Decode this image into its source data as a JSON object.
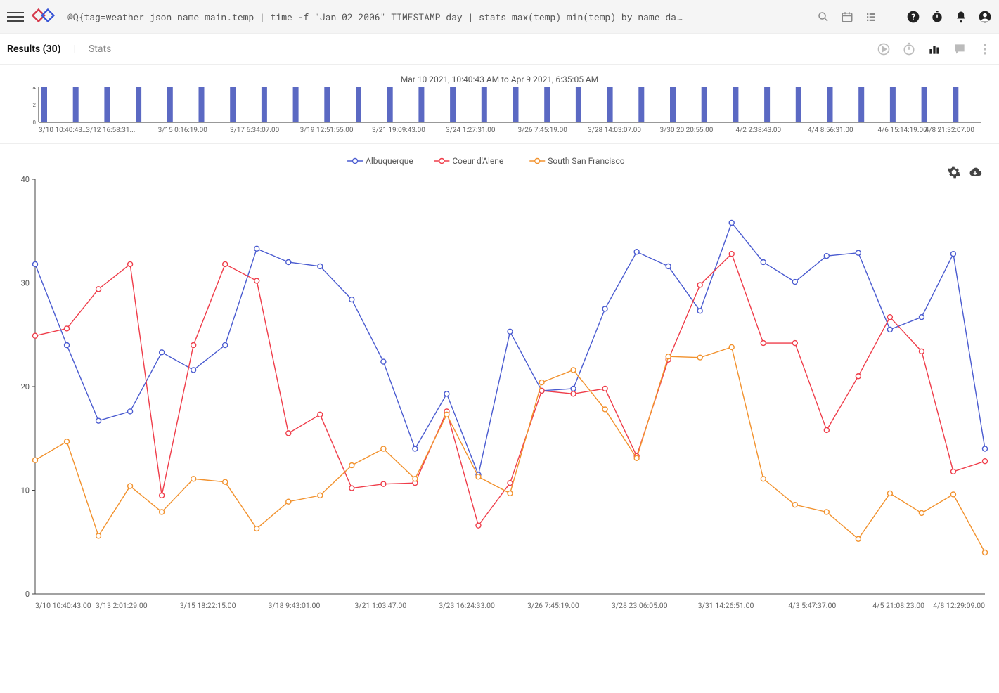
{
  "app": {
    "query": "@Q{tag=weather json name main.temp | time -f \"Jan 02 2006\" TIMESTAMP day | stats max(temp) min(temp) by name da…"
  },
  "results": {
    "active_tab": "Results (30)",
    "inactive_tab": "Stats"
  },
  "timeline": {
    "title": "Mar 10 2021, 10:40:43 AM to Apr 9 2021, 6:35:05 AM",
    "y_ticks": [
      0,
      2,
      4
    ],
    "bar_color": "#5b69c3",
    "bar_value": 4,
    "bar_count": 30,
    "x_labels": [
      "3/10 10:40:43...",
      "3/12 16:58:31...",
      "3/15 0:16:19.00",
      "3/17 6:34:07.00",
      "3/19 12:51:55.00",
      "3/21 19:09:43.00",
      "3/24 1:27:31.00",
      "3/26 7:45:19.00",
      "3/28 14:03:07.00",
      "3/30 20:20:55.00",
      "4/2 2:38:43.00",
      "4/4 8:56:31.00",
      "4/6 15:14:19.00",
      "4/8 21:32:07.00"
    ],
    "axis_color": "#333333",
    "label_color": "#666666",
    "label_fontsize": 10
  },
  "chart": {
    "type": "line",
    "ylim": [
      0,
      40
    ],
    "y_ticks": [
      0,
      10,
      20,
      30,
      40
    ],
    "axis_color": "#444444",
    "tick_fontsize": 11,
    "label_fontsize": 10.5,
    "label_color": "#666666",
    "legend_fontsize": 12,
    "marker_radius": 3.5,
    "line_width": 1.4,
    "background": "#ffffff",
    "x_labels": [
      "3/10 10:40:43.00",
      "3/13 2:01:29.00",
      "3/15 18:22:15.00",
      "3/18 9:43:01.00",
      "3/21 1:03:47.00",
      "3/23 16:24:33.00",
      "3/26 7:45:19.00",
      "3/28 23:06:05.00",
      "3/31 14:26:51.00",
      "4/3 5:47:37.00",
      "4/5 21:08:23.00",
      "4/8 12:29:09.00"
    ],
    "series": [
      {
        "name": "Albuquerque",
        "color": "#4a5bd0",
        "values": [
          31.8,
          24.0,
          16.7,
          17.6,
          23.3,
          21.6,
          24.0,
          33.3,
          32.0,
          31.6,
          28.4,
          22.4,
          14.0,
          19.3,
          11.5,
          25.3,
          19.6,
          19.8,
          27.5,
          33.0,
          31.6,
          27.3,
          35.8,
          32.0,
          30.1,
          32.6,
          32.9,
          25.5,
          26.7,
          32.8,
          14.0
        ]
      },
      {
        "name": "Coeur d'Alene",
        "color": "#ef3d4a",
        "values": [
          24.9,
          25.6,
          29.4,
          31.8,
          9.5,
          24.0,
          31.8,
          30.2,
          15.5,
          17.3,
          10.2,
          10.6,
          10.7,
          17.6,
          6.6,
          10.7,
          19.6,
          19.3,
          19.8,
          13.3,
          22.6,
          29.8,
          32.8,
          24.2,
          24.2,
          15.8,
          21.0,
          26.7,
          23.4,
          11.8,
          12.8
        ]
      },
      {
        "name": "South San Francisco",
        "color": "#f2922e",
        "values": [
          12.9,
          14.7,
          5.6,
          10.4,
          7.9,
          11.1,
          10.8,
          6.3,
          8.9,
          9.5,
          12.4,
          14.0,
          11.1,
          17.3,
          11.3,
          9.7,
          20.4,
          21.6,
          17.8,
          13.1,
          22.9,
          22.8,
          23.8,
          11.1,
          8.6,
          7.9,
          5.3,
          9.7,
          7.8,
          9.6,
          4.0
        ]
      }
    ]
  }
}
